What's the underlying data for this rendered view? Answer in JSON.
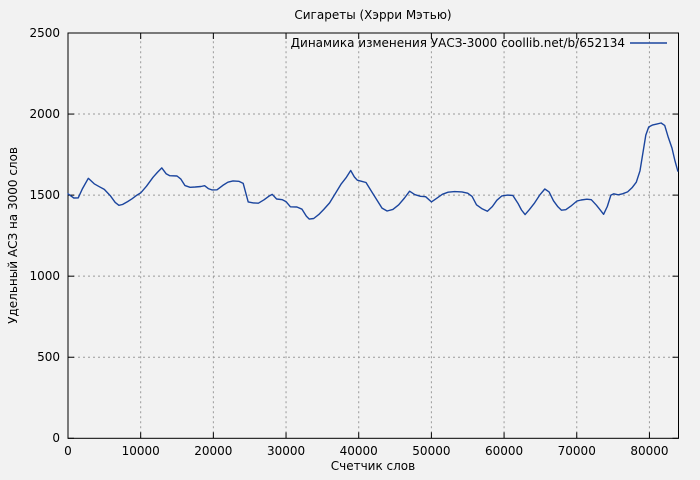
{
  "colors": {
    "background": "#f2f2f2",
    "line": "#1b459e",
    "grid": "#9a9a9a",
    "border": "#000000",
    "text": "#000000"
  },
  "chart_data": {
    "type": "line",
    "title": "Сигареты (Хэрри Мэтью)",
    "xlabel": "Счетчик слов",
    "ylabel": "Удельный АСЗ на 3000 слов",
    "xlim": [
      0,
      84000
    ],
    "ylim": [
      0,
      2500
    ],
    "xticks": [
      0,
      10000,
      20000,
      30000,
      40000,
      50000,
      60000,
      70000,
      80000
    ],
    "yticks": [
      0,
      500,
      1000,
      1500,
      2000,
      2500
    ],
    "grid": true,
    "legend": {
      "label": "Динамика изменения УАСЗ-3000 coollib.net/b/652134",
      "position": "top-right-inside"
    },
    "series": [
      {
        "name": "Динамика изменения УАСЗ-3000 coollib.net/b/652134",
        "color": "#1b459e",
        "points": [
          [
            0,
            1508
          ],
          [
            800,
            1482
          ],
          [
            1400,
            1483
          ],
          [
            2000,
            1540
          ],
          [
            2800,
            1604
          ],
          [
            3600,
            1570
          ],
          [
            4300,
            1552
          ],
          [
            5000,
            1535
          ],
          [
            5800,
            1497
          ],
          [
            6500,
            1455
          ],
          [
            7000,
            1437
          ],
          [
            7500,
            1442
          ],
          [
            8200,
            1460
          ],
          [
            8800,
            1477
          ],
          [
            9500,
            1500
          ],
          [
            10000,
            1514
          ],
          [
            10800,
            1555
          ],
          [
            11700,
            1610
          ],
          [
            12300,
            1640
          ],
          [
            12900,
            1668
          ],
          [
            13500,
            1632
          ],
          [
            14000,
            1620
          ],
          [
            15000,
            1618
          ],
          [
            15500,
            1600
          ],
          [
            16100,
            1559
          ],
          [
            16800,
            1548
          ],
          [
            17500,
            1550
          ],
          [
            18300,
            1553
          ],
          [
            18800,
            1558
          ],
          [
            19300,
            1540
          ],
          [
            19800,
            1532
          ],
          [
            20500,
            1533
          ],
          [
            21300,
            1560
          ],
          [
            22000,
            1580
          ],
          [
            22700,
            1588
          ],
          [
            23500,
            1585
          ],
          [
            24100,
            1572
          ],
          [
            24800,
            1458
          ],
          [
            25500,
            1452
          ],
          [
            26200,
            1450
          ],
          [
            27000,
            1472
          ],
          [
            27600,
            1492
          ],
          [
            28100,
            1505
          ],
          [
            28700,
            1476
          ],
          [
            29500,
            1472
          ],
          [
            30000,
            1460
          ],
          [
            30600,
            1428
          ],
          [
            31500,
            1427
          ],
          [
            32200,
            1413
          ],
          [
            32800,
            1370
          ],
          [
            33200,
            1352
          ],
          [
            33800,
            1356
          ],
          [
            34500,
            1380
          ],
          [
            35200,
            1412
          ],
          [
            36000,
            1452
          ],
          [
            36800,
            1512
          ],
          [
            37600,
            1570
          ],
          [
            38300,
            1610
          ],
          [
            38900,
            1652
          ],
          [
            39400,
            1612
          ],
          [
            39800,
            1592
          ],
          [
            40400,
            1585
          ],
          [
            41000,
            1578
          ],
          [
            41800,
            1520
          ],
          [
            42500,
            1470
          ],
          [
            43200,
            1420
          ],
          [
            43900,
            1402
          ],
          [
            44700,
            1412
          ],
          [
            45500,
            1440
          ],
          [
            46300,
            1482
          ],
          [
            47000,
            1524
          ],
          [
            47700,
            1503
          ],
          [
            48500,
            1493
          ],
          [
            49200,
            1490
          ],
          [
            50000,
            1458
          ],
          [
            50700,
            1480
          ],
          [
            51500,
            1505
          ],
          [
            52300,
            1518
          ],
          [
            53200,
            1522
          ],
          [
            54200,
            1520
          ],
          [
            55000,
            1512
          ],
          [
            55600,
            1492
          ],
          [
            56200,
            1440
          ],
          [
            57000,
            1415
          ],
          [
            57700,
            1400
          ],
          [
            58400,
            1430
          ],
          [
            59000,
            1468
          ],
          [
            59700,
            1495
          ],
          [
            60500,
            1500
          ],
          [
            61200,
            1498
          ],
          [
            61900,
            1450
          ],
          [
            62400,
            1408
          ],
          [
            62900,
            1380
          ],
          [
            63500,
            1412
          ],
          [
            64200,
            1452
          ],
          [
            64900,
            1500
          ],
          [
            65600,
            1538
          ],
          [
            66200,
            1520
          ],
          [
            66800,
            1465
          ],
          [
            67400,
            1428
          ],
          [
            67900,
            1407
          ],
          [
            68500,
            1410
          ],
          [
            69200,
            1432
          ],
          [
            70000,
            1463
          ],
          [
            70600,
            1470
          ],
          [
            71400,
            1475
          ],
          [
            72000,
            1472
          ],
          [
            72700,
            1438
          ],
          [
            73200,
            1410
          ],
          [
            73700,
            1382
          ],
          [
            74200,
            1430
          ],
          [
            74700,
            1500
          ],
          [
            75100,
            1508
          ],
          [
            75700,
            1502
          ],
          [
            76300,
            1508
          ],
          [
            77000,
            1520
          ],
          [
            77600,
            1545
          ],
          [
            78200,
            1580
          ],
          [
            78700,
            1650
          ],
          [
            79100,
            1760
          ],
          [
            79500,
            1870
          ],
          [
            79900,
            1920
          ],
          [
            80400,
            1932
          ],
          [
            81000,
            1938
          ],
          [
            81600,
            1945
          ],
          [
            82100,
            1930
          ],
          [
            82600,
            1856
          ],
          [
            83100,
            1790
          ],
          [
            83500,
            1713
          ],
          [
            83900,
            1648
          ]
        ]
      }
    ]
  }
}
